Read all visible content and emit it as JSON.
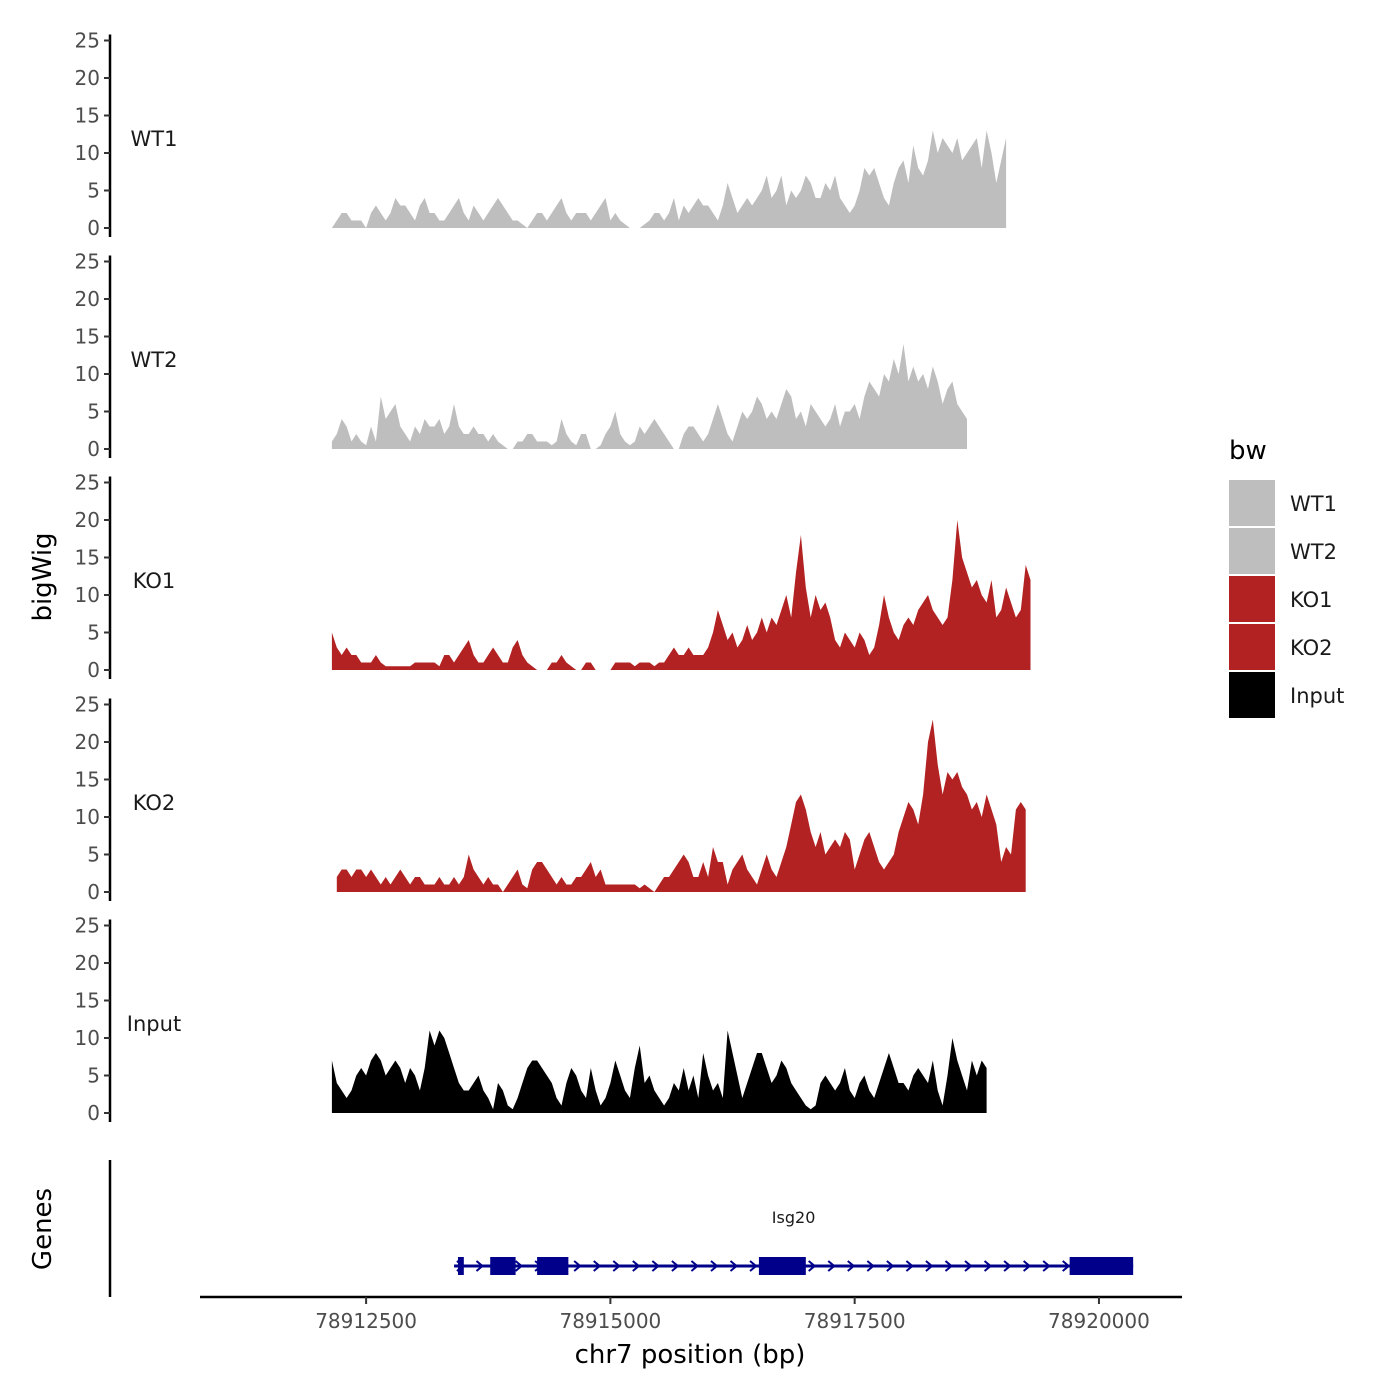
{
  "chart_data": {
    "type": "area",
    "ylabel": "bigWig",
    "xlabel": "chr7 position (bp)",
    "genes_label": "Genes",
    "xlim": [
      78910800,
      78920850
    ],
    "ylim": [
      0,
      25
    ],
    "yticks": [
      {
        "value": 0,
        "label": "0"
      },
      {
        "value": 5,
        "label": "5"
      },
      {
        "value": 10,
        "label": "10"
      },
      {
        "value": 15,
        "label": "15"
      },
      {
        "value": 20,
        "label": "20"
      },
      {
        "value": 25,
        "label": "25"
      }
    ],
    "xticks": [
      {
        "value": 78912500,
        "label": "78912500"
      },
      {
        "value": 78915000,
        "label": "78915000"
      },
      {
        "value": 78917500,
        "label": "78917500"
      },
      {
        "value": 78920000,
        "label": "78920000"
      }
    ],
    "legend": {
      "title": "bw",
      "entries": [
        {
          "label": "WT1",
          "color": "#bebebe"
        },
        {
          "label": "WT2",
          "color": "#bebebe"
        },
        {
          "label": "KO1",
          "color": "#b22222"
        },
        {
          "label": "KO2",
          "color": "#b22222"
        },
        {
          "label": "Input",
          "color": "#000000"
        }
      ]
    },
    "tracks": [
      {
        "name": "WT1",
        "color": "#bebebe",
        "start": 78912150,
        "step": 50,
        "values": [
          0,
          1,
          2,
          2,
          1,
          1,
          1,
          0,
          2,
          3,
          2,
          1,
          2,
          4,
          3,
          3,
          2,
          1,
          3,
          4,
          2,
          2,
          1,
          1,
          2,
          3,
          4,
          2,
          1,
          3,
          2,
          1,
          2,
          3,
          4,
          3,
          2,
          1,
          1,
          0.5,
          0,
          1,
          2,
          2,
          1,
          2,
          3,
          4,
          2,
          1,
          2,
          2,
          2,
          1,
          2,
          3,
          4,
          1,
          2,
          1,
          0.5,
          0,
          0,
          0,
          0.5,
          1,
          2,
          2,
          1,
          2,
          4,
          1,
          3,
          2,
          3,
          4,
          3,
          3,
          2,
          1,
          3,
          6,
          4,
          2,
          3,
          4,
          3,
          4,
          5,
          7,
          4,
          5,
          7,
          3,
          5,
          4,
          5,
          7,
          6,
          4,
          4,
          6,
          5,
          7,
          4,
          3,
          2,
          3,
          5,
          8,
          7,
          8,
          6,
          4,
          3,
          6,
          8,
          9,
          6,
          11,
          8,
          7,
          9,
          13,
          10,
          12,
          11,
          10,
          12,
          9,
          10,
          11,
          12,
          8,
          13,
          10,
          6,
          9,
          12
        ]
      },
      {
        "name": "WT2",
        "color": "#bebebe",
        "start": 78912150,
        "step": 50,
        "values": [
          1,
          2,
          4,
          3,
          1,
          2,
          1,
          0.5,
          3,
          1,
          7,
          4,
          5,
          6,
          3,
          2,
          1,
          3,
          2,
          4,
          3,
          3,
          4,
          2,
          3,
          6,
          3,
          2,
          2,
          3,
          2,
          2,
          1,
          2,
          1,
          0.5,
          0,
          0,
          1,
          1,
          2,
          2,
          1,
          1,
          1,
          0.5,
          1,
          4,
          2,
          1,
          0.5,
          2,
          2,
          0,
          0,
          0.5,
          2,
          3,
          5,
          2,
          1,
          0.5,
          1,
          3,
          2,
          3,
          4,
          3,
          2,
          1,
          0,
          0,
          2,
          3,
          3,
          2,
          1,
          2,
          4,
          6,
          4,
          2,
          1,
          3,
          5,
          4,
          5,
          7,
          6,
          4,
          5,
          4,
          6,
          8,
          7,
          4,
          5,
          3,
          6,
          5,
          4,
          3,
          4,
          6,
          3,
          5,
          5,
          6,
          4,
          7,
          9,
          8,
          7,
          10,
          9,
          12,
          10,
          14,
          9,
          11,
          9,
          10,
          8,
          11,
          9,
          6,
          8,
          9,
          6,
          5,
          4
        ]
      },
      {
        "name": "KO1",
        "color": "#b22222",
        "start": 78912150,
        "step": 50,
        "values": [
          5,
          3,
          2,
          3,
          2,
          2,
          1,
          1,
          1,
          2,
          1,
          0.5,
          0.5,
          0.5,
          0.5,
          0.5,
          0.5,
          1,
          1,
          1,
          1,
          1,
          0.5,
          2,
          2,
          1,
          2,
          3,
          4,
          2,
          1,
          1,
          2,
          3,
          2,
          1,
          1,
          3,
          4,
          2,
          1,
          0.5,
          0,
          0,
          0,
          1,
          1,
          2,
          1,
          0.5,
          0,
          0,
          1,
          1,
          0,
          0,
          0,
          0,
          1,
          1,
          1,
          1,
          0.5,
          1,
          1,
          1,
          0.5,
          1,
          1,
          2,
          3,
          2,
          2,
          3,
          2,
          2,
          2,
          3,
          5,
          8,
          6,
          4,
          5,
          3,
          4,
          6,
          4,
          5,
          7,
          5,
          7,
          6,
          8,
          10,
          7,
          13,
          18,
          11,
          7,
          10,
          8,
          9,
          7,
          4,
          3,
          5,
          4,
          3,
          5,
          4,
          2,
          3,
          6,
          10,
          7,
          5,
          4,
          6,
          7,
          6,
          8,
          9,
          10,
          8,
          7,
          6,
          7,
          12,
          20,
          15,
          13,
          11,
          12,
          10,
          9,
          12,
          7,
          8,
          11,
          9,
          7,
          8,
          14,
          12
        ]
      },
      {
        "name": "KO2",
        "color": "#b22222",
        "start": 78912200,
        "step": 50,
        "values": [
          2,
          3,
          3,
          2,
          3,
          3,
          2,
          3,
          2,
          1,
          2,
          1,
          2,
          3,
          2,
          1,
          2,
          2,
          1,
          1,
          1,
          2,
          1,
          1,
          2,
          1,
          2,
          5,
          3,
          2,
          1,
          2,
          1,
          1,
          0,
          1,
          2,
          3,
          1,
          0.5,
          3,
          4,
          4,
          3,
          2,
          1,
          2,
          1,
          1,
          2,
          2,
          3,
          4,
          2,
          3,
          1,
          1,
          1,
          1,
          1,
          1,
          1,
          0.5,
          1,
          0.5,
          0,
          1,
          2,
          2,
          3,
          4,
          5,
          4,
          2,
          2,
          4,
          2,
          6,
          4,
          4,
          1,
          3,
          4,
          5,
          3,
          2,
          1,
          3,
          5,
          3,
          2,
          4,
          6,
          9,
          12,
          13,
          11,
          8,
          6,
          8,
          5,
          6,
          7,
          6,
          8,
          7,
          3,
          5,
          7,
          8,
          6,
          4,
          3,
          4,
          5,
          8,
          10,
          12,
          11,
          9,
          13,
          20,
          23,
          17,
          13,
          16,
          15,
          16,
          14,
          13,
          11,
          12,
          10,
          13,
          11,
          9,
          4,
          6,
          5,
          11,
          12,
          11
        ]
      },
      {
        "name": "Input",
        "color": "#000000",
        "start": 78912150,
        "step": 50,
        "values": [
          7,
          4,
          3,
          2,
          3,
          5,
          6,
          5,
          7,
          8,
          7,
          5,
          6,
          7,
          6,
          4,
          6,
          5,
          3,
          6,
          11,
          9,
          11,
          10,
          8,
          6,
          4,
          3,
          3,
          4,
          5,
          3,
          2,
          0.5,
          4,
          3,
          1,
          0.5,
          2,
          4,
          6,
          7,
          7,
          6,
          5,
          4,
          2,
          1,
          4,
          6,
          5,
          3,
          2,
          6,
          3,
          1,
          2,
          4,
          7,
          5,
          3,
          2,
          6,
          9,
          4,
          5,
          3,
          2,
          1,
          2,
          4,
          3,
          6,
          3,
          5,
          2,
          8,
          5,
          3,
          4,
          2,
          11,
          8,
          5,
          2,
          4,
          6,
          8,
          8,
          6,
          4,
          5,
          7,
          6,
          4,
          3,
          2,
          1,
          0.5,
          1,
          4,
          5,
          4,
          3,
          4,
          6,
          3,
          2,
          4,
          5,
          3,
          2,
          4,
          6,
          8,
          6,
          4,
          4,
          3,
          5,
          6,
          5,
          4,
          7,
          3,
          1,
          5,
          10,
          7,
          5,
          3,
          7,
          5,
          7,
          6
        ]
      }
    ],
    "gene": {
      "name": "Isg20",
      "color": "#00008b",
      "start": 78913400,
      "end": 78920350,
      "strand": "+",
      "exons": [
        {
          "start": 78913440,
          "end": 78913500
        },
        {
          "start": 78913770,
          "end": 78914030
        },
        {
          "start": 78914250,
          "end": 78914570
        },
        {
          "start": 78916520,
          "end": 78917000
        },
        {
          "start": 78919700,
          "end": 78920350
        }
      ]
    }
  }
}
